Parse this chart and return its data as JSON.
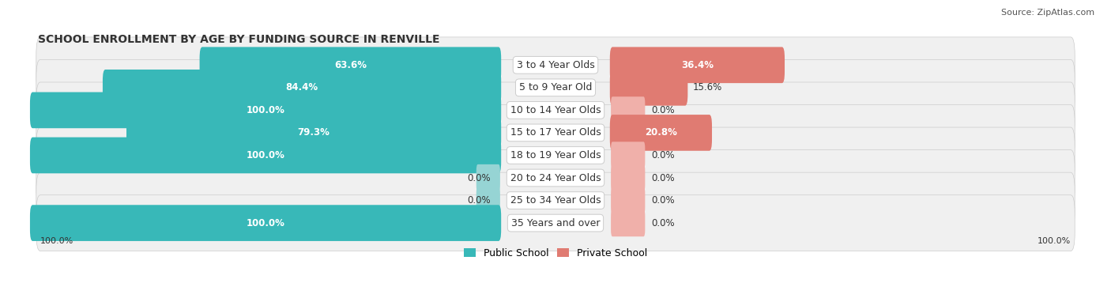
{
  "title": "SCHOOL ENROLLMENT BY AGE BY FUNDING SOURCE IN RENVILLE",
  "source": "Source: ZipAtlas.com",
  "categories": [
    "3 to 4 Year Olds",
    "5 to 9 Year Old",
    "10 to 14 Year Olds",
    "15 to 17 Year Olds",
    "18 to 19 Year Olds",
    "20 to 24 Year Olds",
    "25 to 34 Year Olds",
    "35 Years and over"
  ],
  "public_values": [
    63.6,
    84.4,
    100.0,
    79.3,
    100.0,
    0.0,
    0.0,
    100.0
  ],
  "private_values": [
    36.4,
    15.6,
    0.0,
    20.8,
    0.0,
    0.0,
    0.0,
    0.0
  ],
  "public_color": "#38b8b8",
  "private_color": "#e07b72",
  "public_color_light": "#96d4d4",
  "private_color_light": "#f0b0aa",
  "row_bg_color": "#f0f0f0",
  "row_border_color": "#cccccc",
  "label_color_white": "#ffffff",
  "label_color_dark": "#333333",
  "title_fontsize": 10,
  "source_fontsize": 8,
  "label_fontsize": 8.5,
  "category_fontsize": 9,
  "legend_fontsize": 9,
  "footer_fontsize": 8,
  "left_axis_label": "100.0%",
  "right_axis_label": "100.0%"
}
